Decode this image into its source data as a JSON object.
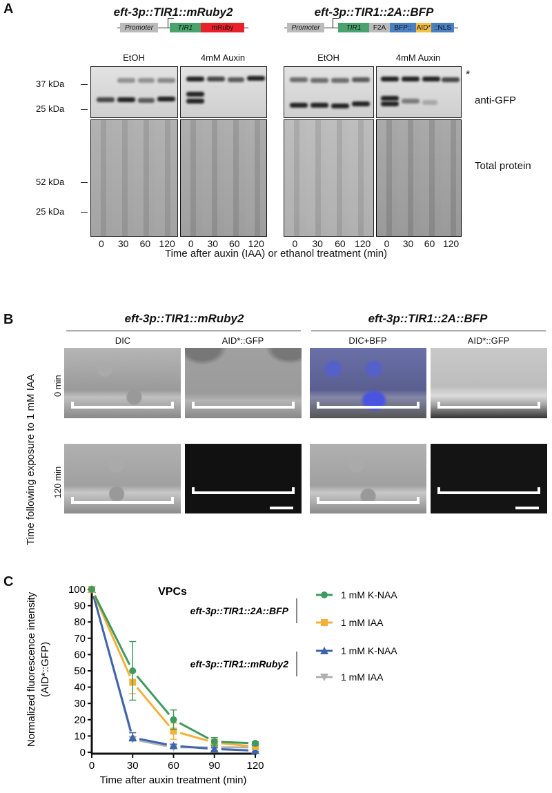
{
  "panel_a": {
    "letter": "A",
    "construct_left": {
      "title": "eft-3p::TIR1::mRuby2",
      "segments": [
        "Promoter",
        "TIR1",
        "mRuby"
      ]
    },
    "construct_right": {
      "title": "eft-3p::TIR1::2A::BFP",
      "segments": [
        "Promoter",
        "TIR1",
        "F2A",
        "BFP::",
        "AID*",
        "::NLS"
      ]
    },
    "conditions": [
      "EtOH",
      "4mM Auxin",
      "EtOH",
      "4mM Auxin"
    ],
    "mw_top": [
      "37 kDa",
      "25 kDa"
    ],
    "mw_bottom": [
      "52 kDa",
      "25 kDa"
    ],
    "blot_labels": {
      "asterisk": "*",
      "top": "anti-GFP",
      "bottom": "Total protein"
    },
    "lanes": [
      "0",
      "30",
      "60",
      "120"
    ],
    "xlabel": "Time after auxin (IAA) or ethanol treatment (min)"
  },
  "panel_b": {
    "letter": "B",
    "titles": [
      "eft-3p::TIR1::mRuby2",
      "eft-3p::TIR1::2A::BFP"
    ],
    "columns": [
      "DIC",
      "AID*::GFP",
      "DIC+BFP",
      "AID*::GFP"
    ],
    "rows": [
      "0 min",
      "120 min"
    ],
    "ylabel": "Time following exposure to 1 mM IAA"
  },
  "panel_c": {
    "letter": "C"
  },
  "chart_data": {
    "type": "line",
    "title": "VPCs",
    "xlabel": "Time after auxin treatment (min)",
    "ylabel": "Normalized fluorescence intensity",
    "ylabel2": "(AID*::GFP)",
    "x": [
      0,
      30,
      60,
      90,
      120
    ],
    "xticks": [
      "0",
      "30",
      "60",
      "90",
      "120"
    ],
    "yticks": [
      "0",
      "10",
      "20",
      "30",
      "40",
      "50",
      "60",
      "70",
      "80",
      "90",
      "100"
    ],
    "xlim": [
      0,
      120
    ],
    "ylim": [
      0,
      100
    ],
    "legend_groups": [
      "eft-3p::TIR1::2A::BFP",
      "eft-3p::TIR1::mRuby2"
    ],
    "legend_position": "right",
    "series": [
      {
        "name": "1 mM K-NAA",
        "group": 0,
        "color": "#3e9a5f",
        "marker": "circle",
        "values": [
          100,
          50,
          20,
          6.5,
          5.5
        ],
        "err_low": [
          100,
          32,
          14,
          4,
          4
        ],
        "err_high": [
          100,
          68,
          26,
          9,
          6.5
        ]
      },
      {
        "name": "1 mM IAA",
        "group": 0,
        "color": "#f3b13a",
        "marker": "square",
        "values": [
          100,
          43,
          13,
          6,
          3.5
        ],
        "err_low": [
          100,
          36,
          8,
          4,
          2.5
        ],
        "err_high": [
          100,
          50,
          18,
          8,
          4.5
        ]
      },
      {
        "name": "1 mM K-NAA",
        "group": 1,
        "color": "#3f65ac",
        "marker": "triangle",
        "values": [
          100,
          9,
          4,
          2,
          1
        ],
        "err_low": [
          100,
          7,
          3,
          1,
          0.5
        ],
        "err_high": [
          100,
          12,
          5,
          3,
          1.5
        ]
      },
      {
        "name": "1 mM IAA",
        "group": 1,
        "color": "#b0b0b0",
        "marker": "triangle-down",
        "values": [
          100,
          8,
          3,
          3,
          3
        ],
        "err_low": [
          100,
          7,
          2.5,
          2.5,
          2.5
        ],
        "err_high": [
          100,
          9,
          3.5,
          3.5,
          3.5
        ]
      }
    ]
  }
}
